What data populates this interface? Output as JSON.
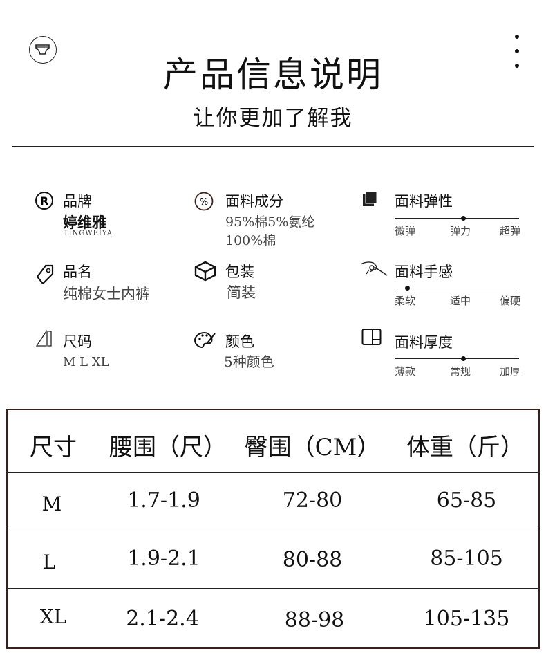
{
  "header": {
    "title": "产品信息说明",
    "subtitle": "让你更加了解我",
    "logo_icon": "underwear-icon",
    "menu_icon": "more-vertical-icon"
  },
  "info": {
    "brand": {
      "label": "品牌",
      "value": "婷维雅",
      "value_en": "TINGWEIYA",
      "icon": "registered-icon"
    },
    "material": {
      "label": "面料成分",
      "lines": [
        "95%棉5%氨纶",
        "100%棉"
      ],
      "icon": "percent-icon"
    },
    "name": {
      "label": "品名",
      "value": "纯棉女士内裤",
      "icon": "tag-icon"
    },
    "package": {
      "label": "包装",
      "value": "简装",
      "icon": "box-icon"
    },
    "size": {
      "label": "尺码",
      "value": "M L XL",
      "icon": "ruler-icon"
    },
    "color": {
      "label": "颜色",
      "value": "5种颜色",
      "icon": "palette-icon"
    },
    "elasticity": {
      "label": "面料弹性",
      "ticks": [
        "微弹",
        "弹力",
        "超弹"
      ],
      "level": 0.55,
      "icon": "fabric-icon"
    },
    "feel": {
      "label": "面料手感",
      "ticks": [
        "柔软",
        "适中",
        "偏硬"
      ],
      "level": 0.1,
      "icon": "hand-icon"
    },
    "thickness": {
      "label": "面料厚度",
      "ticks": [
        "薄款",
        "常规",
        "加厚"
      ],
      "level": 0.55,
      "icon": "roll-icon"
    }
  },
  "table": {
    "headers": [
      "尺寸",
      "腰围（尺）",
      "臀围（CM）",
      "体重（斤）"
    ],
    "rows": [
      [
        "M",
        "1.7-1.9",
        "72-80",
        "65-85"
      ],
      [
        "L",
        "1.9-2.1",
        "80-88",
        "85-105"
      ],
      [
        "XL",
        "2.1-2.4",
        "88-98",
        "105-135"
      ]
    ],
    "border_color": "#3a1f1a"
  }
}
